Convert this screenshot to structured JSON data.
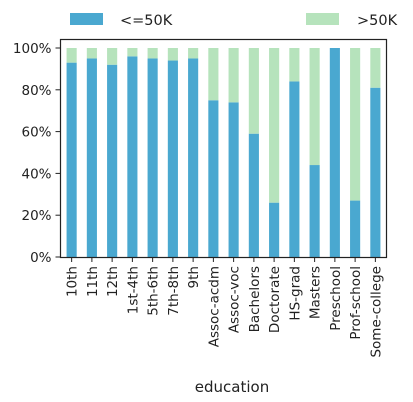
{
  "chart_data": {
    "type": "bar",
    "stacked": true,
    "categories": [
      "10th",
      "11th",
      "12th",
      "1st-4th",
      "5th-6th",
      "7th-8th",
      "9th",
      "Assoc-acdm",
      "Assoc-voc",
      "Bachelors",
      "Doctorate",
      "HS-grad",
      "Masters",
      "Preschool",
      "Prof-school",
      "Some-college"
    ],
    "series": [
      {
        "name": "<=50K",
        "color": "#4aa8d0",
        "values": [
          93,
          95,
          92,
          96,
          95,
          94,
          95,
          75,
          74,
          59,
          26,
          84,
          44,
          100,
          27,
          81
        ]
      },
      {
        "name": ">50K",
        "color": "#b6e3bc",
        "values": [
          7,
          5,
          8,
          4,
          5,
          6,
          5,
          25,
          26,
          41,
          74,
          16,
          56,
          0,
          73,
          19
        ]
      }
    ],
    "xlabel": "education",
    "ylabel": "",
    "ylim": [
      0,
      100
    ],
    "yticks": [
      "0%",
      "20%",
      "40%",
      "60%",
      "80%",
      "100%"
    ],
    "legend": "top",
    "grid": false
  }
}
